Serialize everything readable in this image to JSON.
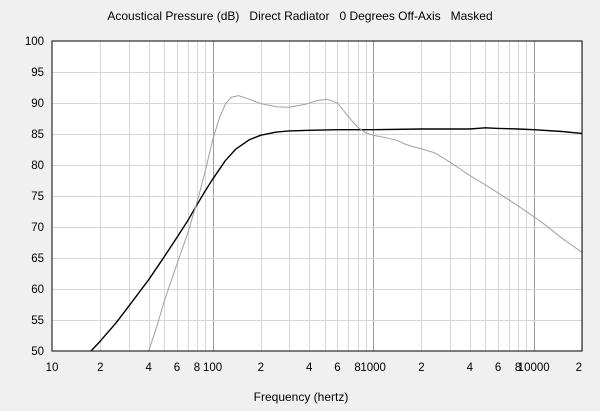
{
  "chart_data": {
    "type": "line",
    "title": "Acoustical Pressure (dB)   Direct Radiator   0 Degrees Off-Axis   Masked",
    "xlabel": "Frequency (hertz)",
    "ylabel": "",
    "x_scale": "log",
    "xlim": [
      10,
      20000
    ],
    "ylim": [
      50,
      100
    ],
    "grid": true,
    "y_ticks": [
      "100",
      "95",
      "90",
      "85",
      "80",
      "75",
      "70",
      "65",
      "60",
      "55",
      "50"
    ],
    "x_ticks": [
      {
        "value": 10,
        "label": "10"
      },
      {
        "value": 20,
        "label": "2"
      },
      {
        "value": 40,
        "label": "4"
      },
      {
        "value": 60,
        "label": "6"
      },
      {
        "value": 80,
        "label": "8"
      },
      {
        "value": 100,
        "label": "100"
      },
      {
        "value": 200,
        "label": "2"
      },
      {
        "value": 400,
        "label": "4"
      },
      {
        "value": 600,
        "label": "6"
      },
      {
        "value": 800,
        "label": "8"
      },
      {
        "value": 1000,
        "label": "1000"
      },
      {
        "value": 2000,
        "label": "2"
      },
      {
        "value": 4000,
        "label": "4"
      },
      {
        "value": 6000,
        "label": "6"
      },
      {
        "value": 8000,
        "label": "8"
      },
      {
        "value": 10000,
        "label": "10000"
      },
      {
        "value": 20000,
        "label": "2"
      }
    ],
    "series": [
      {
        "color": "#000000",
        "points": [
          [
            17.5,
            50
          ],
          [
            20,
            51.6
          ],
          [
            25,
            54.5
          ],
          [
            30,
            57.2
          ],
          [
            40,
            61.5
          ],
          [
            50,
            65.2
          ],
          [
            60,
            68.3
          ],
          [
            70,
            71.0
          ],
          [
            80,
            73.6
          ],
          [
            90,
            75.8
          ],
          [
            100,
            77.7
          ],
          [
            120,
            80.7
          ],
          [
            140,
            82.6
          ],
          [
            170,
            84.1
          ],
          [
            200,
            84.8
          ],
          [
            250,
            85.3
          ],
          [
            300,
            85.5
          ],
          [
            400,
            85.6
          ],
          [
            600,
            85.7
          ],
          [
            1000,
            85.7
          ],
          [
            2000,
            85.8
          ],
          [
            4000,
            85.8
          ],
          [
            5000,
            86.0
          ],
          [
            6000,
            85.9
          ],
          [
            8000,
            85.8
          ],
          [
            10000,
            85.7
          ],
          [
            15000,
            85.4
          ],
          [
            20000,
            85.1
          ]
        ]
      },
      {
        "color": "#a0a0a0",
        "points": [
          [
            40,
            50
          ],
          [
            45,
            54
          ],
          [
            50,
            58
          ],
          [
            60,
            64
          ],
          [
            70,
            69
          ],
          [
            80,
            74
          ],
          [
            90,
            79
          ],
          [
            100,
            84
          ],
          [
            110,
            87.5
          ],
          [
            120,
            89.8
          ],
          [
            130,
            90.9
          ],
          [
            145,
            91.2
          ],
          [
            170,
            90.6
          ],
          [
            200,
            89.9
          ],
          [
            250,
            89.4
          ],
          [
            300,
            89.3
          ],
          [
            380,
            89.8
          ],
          [
            450,
            90.4
          ],
          [
            520,
            90.6
          ],
          [
            600,
            90.0
          ],
          [
            700,
            87.8
          ],
          [
            800,
            86.1
          ],
          [
            900,
            85.2
          ],
          [
            1000,
            84.8
          ],
          [
            1200,
            84.4
          ],
          [
            1400,
            84.0
          ],
          [
            1600,
            83.3
          ],
          [
            1800,
            82.9
          ],
          [
            2000,
            82.6
          ],
          [
            2400,
            82.0
          ],
          [
            3000,
            80.5
          ],
          [
            4000,
            78.3
          ],
          [
            5000,
            76.8
          ],
          [
            6000,
            75.5
          ],
          [
            7000,
            74.4
          ],
          [
            8000,
            73.4
          ],
          [
            10000,
            71.7
          ],
          [
            12000,
            70.2
          ],
          [
            15000,
            68.2
          ],
          [
            20000,
            65.9
          ]
        ]
      }
    ]
  }
}
